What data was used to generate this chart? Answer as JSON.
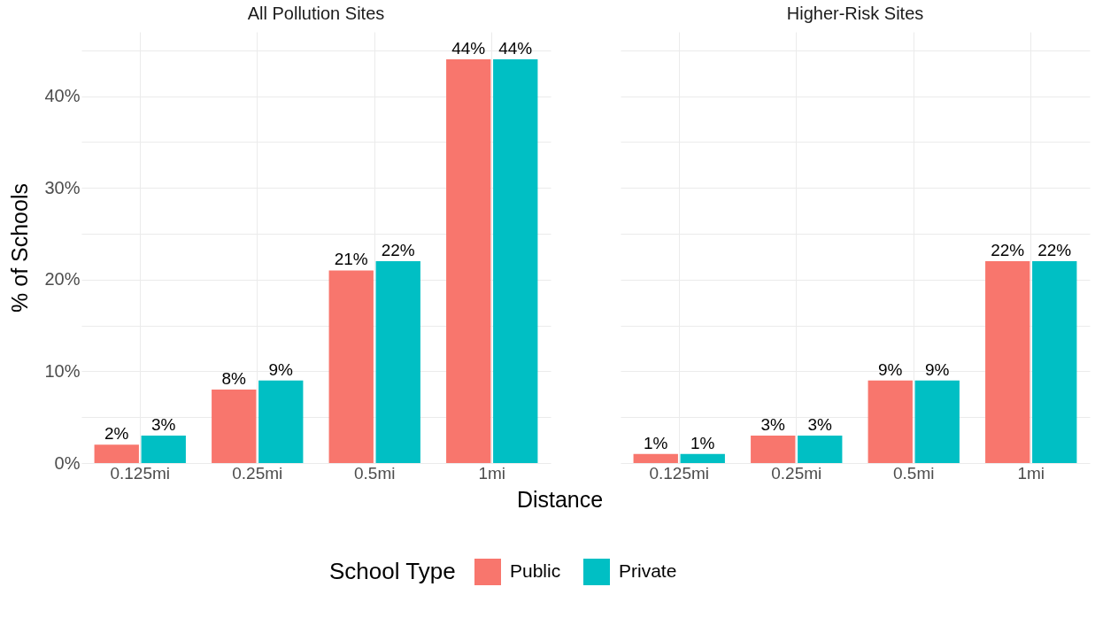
{
  "chart_data": [
    {
      "type": "bar",
      "title": "All Pollution Sites",
      "xlabel": "Distance",
      "ylabel": "% of Schools",
      "legend_title": "School Type",
      "legend": "bottom",
      "grid": true,
      "categories": [
        "0.125mi",
        "0.25mi",
        "0.5mi",
        "1mi"
      ],
      "series": [
        {
          "name": "Public",
          "color": "#f8766d",
          "values": [
            2,
            8,
            21,
            44
          ],
          "value_labels": [
            "2%",
            "8%",
            "21%",
            "44%"
          ]
        },
        {
          "name": "Private",
          "color": "#00bfc4",
          "values": [
            3,
            9,
            22,
            44
          ],
          "value_labels": [
            "3%",
            "9%",
            "22%",
            "44%"
          ]
        }
      ],
      "ylim": [
        0,
        47
      ],
      "yticks": [
        {
          "value": 0,
          "label": "0%"
        },
        {
          "value": 5,
          "label": null
        },
        {
          "value": 10,
          "label": "10%"
        },
        {
          "value": 15,
          "label": null
        },
        {
          "value": 20,
          "label": "20%"
        },
        {
          "value": 25,
          "label": null
        },
        {
          "value": 30,
          "label": "30%"
        },
        {
          "value": 35,
          "label": null
        },
        {
          "value": 40,
          "label": "40%"
        },
        {
          "value": 45,
          "label": null
        }
      ]
    },
    {
      "type": "bar",
      "title": "Higher-Risk Sites",
      "grid": true,
      "tick_labels": "x",
      "categories": [
        "0.125mi",
        "0.25mi",
        "0.5mi",
        "1mi"
      ],
      "series": [
        {
          "name": "Public",
          "color": "#f8766d",
          "values": [
            1,
            3,
            9,
            22
          ],
          "value_labels": [
            "1%",
            "3%",
            "9%",
            "22%"
          ]
        },
        {
          "name": "Private",
          "color": "#00bfc4",
          "values": [
            1,
            3,
            9,
            22
          ],
          "value_labels": [
            "1%",
            "3%",
            "9%",
            "22%"
          ]
        }
      ],
      "ylim": [
        0,
        47
      ],
      "yticks": [
        {
          "value": 0,
          "label": null
        },
        {
          "value": 5,
          "label": null
        },
        {
          "value": 10,
          "label": null
        },
        {
          "value": 15,
          "label": null
        },
        {
          "value": 20,
          "label": null
        },
        {
          "value": 25,
          "label": null
        },
        {
          "value": 30,
          "label": null
        },
        {
          "value": 35,
          "label": null
        },
        {
          "value": 40,
          "label": null
        },
        {
          "value": 45,
          "label": null
        }
      ]
    }
  ]
}
